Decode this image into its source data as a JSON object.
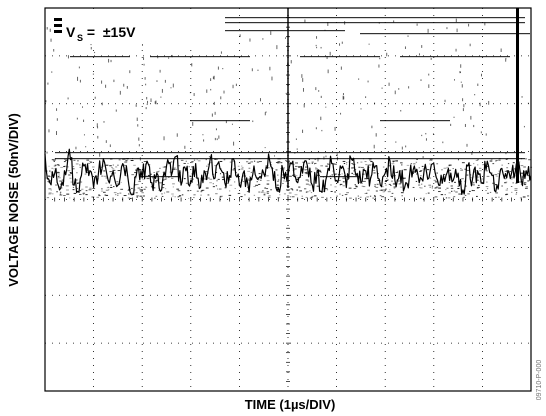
{
  "chart_data": {
    "type": "line",
    "title": "",
    "xlabel": "TIME (1µs/DIV)",
    "ylabel": "VOLTAGE NOISE (50nV/DIV)",
    "annotation": {
      "main": "V",
      "sub": "S",
      "rest": " =  ±15V"
    },
    "figure_id": "09710-P-000",
    "x_divisions": 10,
    "y_divisions": 8,
    "xlim": [
      0,
      10
    ],
    "ylim": [
      -4,
      4
    ],
    "grid": true,
    "series": [
      {
        "x": [
          0.0,
          0.1,
          0.2,
          0.3,
          0.4,
          0.5,
          0.6,
          0.7,
          0.8,
          0.9,
          1.0,
          1.1,
          1.2,
          1.3,
          1.4,
          1.5,
          1.6,
          1.7,
          1.8,
          1.9,
          2.0,
          2.1,
          2.2,
          2.3,
          2.4,
          2.5,
          2.6,
          2.7,
          2.8,
          2.9,
          3.0,
          3.1,
          3.2,
          3.3,
          3.4,
          3.5,
          3.6,
          3.7,
          3.8,
          3.9,
          4.0,
          4.1,
          4.2,
          4.3,
          4.4,
          4.5,
          4.6,
          4.7,
          4.8,
          4.9,
          5.0,
          5.1,
          5.2,
          5.3,
          5.4,
          5.5,
          5.6,
          5.7,
          5.8,
          5.9,
          6.0,
          6.1,
          6.2,
          6.3,
          6.4,
          6.5,
          6.6,
          6.7,
          6.8,
          6.9,
          7.0,
          7.1,
          7.2,
          7.3,
          7.4,
          7.5,
          7.6,
          7.7,
          7.8,
          7.9,
          8.0,
          8.1,
          8.2,
          8.3,
          8.4,
          8.5,
          8.6,
          8.7,
          8.8,
          8.9,
          9.0,
          9.1,
          9.2,
          9.3,
          9.4,
          9.5,
          9.6,
          9.7,
          9.8,
          9.9,
          10.0
        ],
        "y": [
          0.95,
          0.35,
          0.55,
          0.2,
          0.6,
          1.05,
          0.3,
          0.15,
          0.7,
          0.5,
          0.25,
          0.55,
          0.85,
          0.4,
          0.6,
          0.3,
          0.75,
          0.5,
          0.1,
          0.65,
          0.45,
          0.8,
          0.35,
          0.55,
          0.2,
          0.7,
          0.5,
          0.9,
          0.3,
          0.6,
          0.4,
          0.75,
          0.25,
          0.55,
          0.85,
          0.45,
          0.65,
          0.35,
          0.5,
          0.8,
          0.3,
          0.6,
          0.15,
          0.7,
          0.45,
          0.55,
          0.95,
          0.4,
          0.25,
          0.6,
          0.5,
          0.8,
          0.35,
          0.55,
          0.7,
          0.3,
          0.6,
          0.15,
          0.5,
          0.75,
          0.4,
          0.65,
          0.25,
          0.85,
          0.5,
          0.35,
          0.6,
          0.45,
          0.7,
          0.3,
          0.55,
          0.8,
          0.4,
          0.6,
          0.25,
          0.5,
          0.7,
          0.35,
          0.6,
          0.45,
          0.75,
          0.3,
          0.5,
          0.65,
          0.4,
          0.55,
          0.2,
          0.7,
          0.45,
          0.6,
          0.35,
          0.8,
          0.5,
          0.3,
          0.65,
          0.45,
          0.55,
          0.75,
          0.4,
          0.6,
          0.5
        ]
      }
    ]
  }
}
